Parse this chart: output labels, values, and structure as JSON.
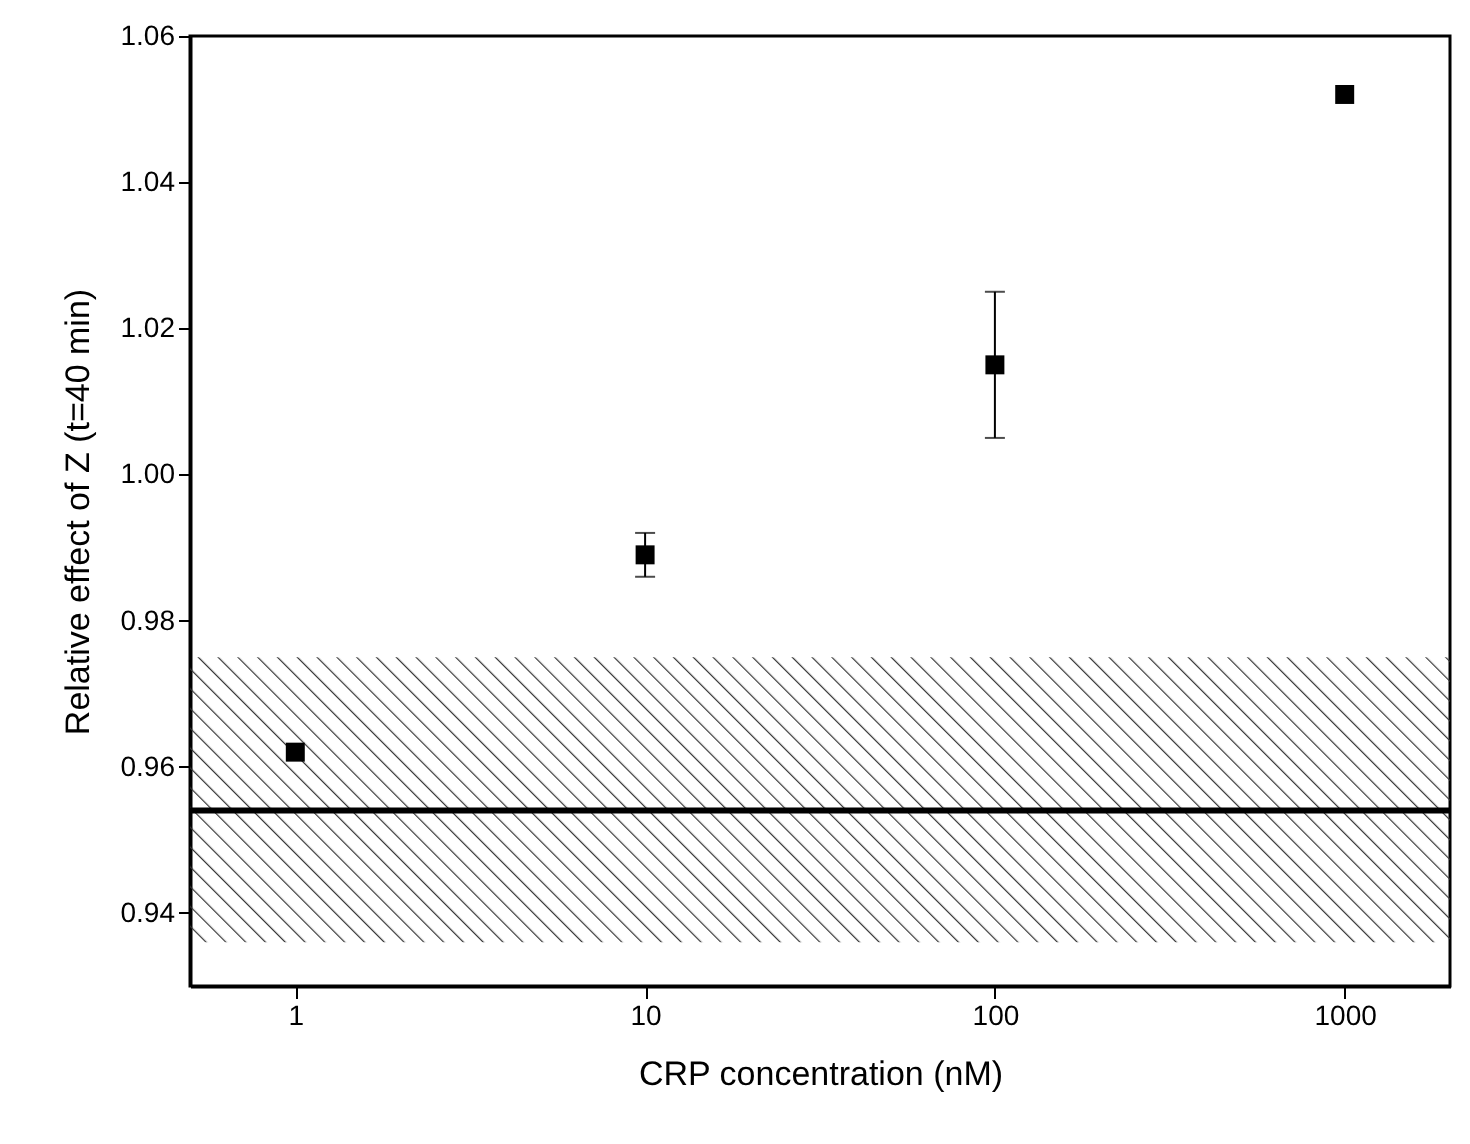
{
  "chart_data": {
    "type": "scatter",
    "xlabel": "CRP concentration (nM)",
    "ylabel": "Relative effect of Z (t=40 min)",
    "x": [
      1,
      10,
      100,
      1000
    ],
    "series": [
      {
        "color": "#000000",
        "values": [
          0.962,
          0.989,
          1.015,
          1.052
        ],
        "errors": [
          null,
          0.003,
          0.01,
          null
        ]
      }
    ],
    "log": "x",
    "marker": "square",
    "grid": false,
    "xlim": [
      0.5,
      2000
    ],
    "xticks": [
      1,
      10,
      100,
      1000
    ],
    "ylim": [
      0.93,
      1.06
    ],
    "yticks": [
      0.94,
      0.96,
      0.98,
      {
        "value": 1,
        "label": "1.00"
      },
      1.02,
      1.04,
      1.06
    ],
    "ref_lines": [
      {
        "axis": "y",
        "value": 0.954,
        "color": "#000000"
      }
    ],
    "bands": [
      {
        "axis": "y",
        "from": 0.936,
        "to": 0.975,
        "color": "#333333"
      }
    ]
  }
}
